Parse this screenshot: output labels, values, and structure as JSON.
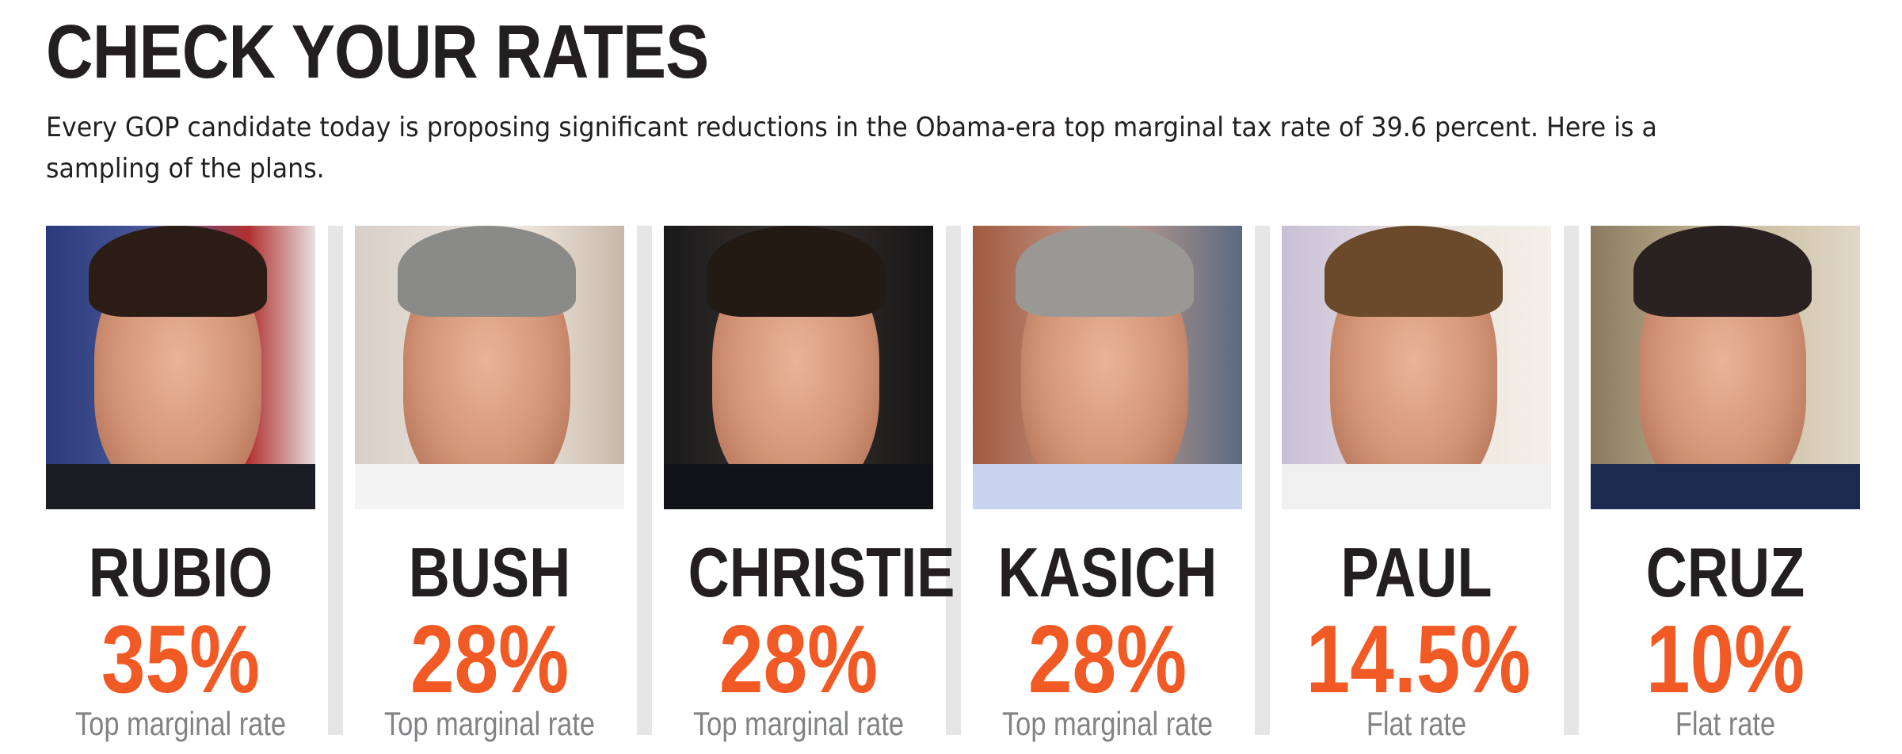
{
  "title": "CHECK YOUR RATES",
  "subtitle": "Every GOP candidate today is proposing significant reductions in the Obama-era top marginal tax rate of 39.6 percent. Here is a sampling of the plans.",
  "colors": {
    "rate": "#f15a24",
    "name": "#231f20",
    "label": "#808285",
    "divider": "#e6e6e6"
  },
  "candidates": [
    {
      "name": "RUBIO",
      "rate": "35%",
      "label": "Top marginal rate",
      "photo_bg": "linear-gradient(90deg,#2a3a7a 0%,#4a5a9a 40%,#b03030 75%,#e8e0e0 100%)",
      "hair": "#2b1d16",
      "suit": "#1c1c24"
    },
    {
      "name": "BUSH",
      "rate": "28%",
      "label": "Top marginal rate",
      "photo_bg": "linear-gradient(90deg,#d8d0c8,#efe8e0 60%,#c8b8a8)",
      "hair": "#8a8a88",
      "suit": "#f4f4f4"
    },
    {
      "name": "CHRISTIE",
      "rate": "28%",
      "label": "Top marginal rate",
      "photo_bg": "linear-gradient(90deg,#1a1a1a,#3a3230 50%,#151515)",
      "hair": "#241a14",
      "suit": "#111318"
    },
    {
      "name": "KASICH",
      "rate": "28%",
      "label": "Top marginal rate",
      "photo_bg": "linear-gradient(90deg,#a05a40,#c8a090 50%,#5a6a80)",
      "hair": "#9a9894",
      "suit": "#c8d4ee"
    },
    {
      "name": "PAUL",
      "rate": "14.5%",
      "label": "Flat rate",
      "photo_bg": "linear-gradient(90deg,#c8c0d8,#ede6e0 60%,#f4efe8)",
      "hair": "#6a4a2a",
      "suit": "#f0f0f0"
    },
    {
      "name": "CRUZ",
      "rate": "10%",
      "label": "Flat rate",
      "photo_bg": "linear-gradient(90deg,#8a7a60,#c8b898 50%,#e0d8c8)",
      "hair": "#2a2220",
      "suit": "#1c2a50"
    }
  ]
}
